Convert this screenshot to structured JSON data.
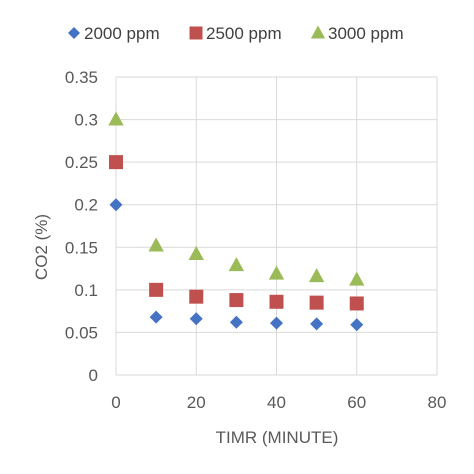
{
  "chart_data": {
    "type": "scatter",
    "xlabel": "TIMR (MINUTE)",
    "ylabel": "CO2 (%)",
    "xlim": [
      0,
      80
    ],
    "ylim": [
      0,
      0.35
    ],
    "x_ticks": [
      "0",
      "20",
      "40",
      "60",
      "80"
    ],
    "y_ticks": [
      "0",
      "0.05",
      "0.1",
      "0.15",
      "0.2",
      "0.25",
      "0.3",
      "0.35"
    ],
    "x_tick_values": [
      0,
      20,
      40,
      60,
      80
    ],
    "y_tick_values": [
      0,
      0.05,
      0.1,
      0.15,
      0.2,
      0.25,
      0.3,
      0.35
    ],
    "grid": true,
    "legend_position": "top",
    "series": [
      {
        "name": "2000 ppm",
        "marker": "diamond",
        "color": "#4472C4",
        "x": [
          0,
          10,
          20,
          30,
          40,
          50,
          60
        ],
        "y": [
          0.2,
          0.068,
          0.066,
          0.062,
          0.061,
          0.06,
          0.059
        ]
      },
      {
        "name": "2500 ppm",
        "marker": "square",
        "color": "#C0504D",
        "x": [
          0,
          10,
          20,
          30,
          40,
          50,
          60
        ],
        "y": [
          0.25,
          0.1,
          0.092,
          0.088,
          0.086,
          0.085,
          0.084
        ]
      },
      {
        "name": "3000 ppm",
        "marker": "triangle",
        "color": "#9BBB59",
        "x": [
          0,
          10,
          20,
          30,
          40,
          50,
          60
        ],
        "y": [
          0.3,
          0.152,
          0.142,
          0.129,
          0.119,
          0.116,
          0.112
        ]
      }
    ]
  }
}
